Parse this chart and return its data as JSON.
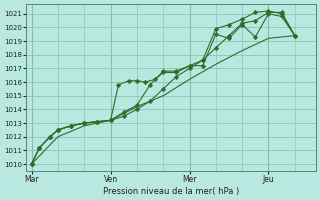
{
  "bg_color": "#b8e8e0",
  "grid_color": "#88bbaa",
  "line_color": "#2d6e2d",
  "xlabel": "Pression niveau de la mer( hPa )",
  "ylim": [
    1009.5,
    1021.7
  ],
  "yticks": [
    1010,
    1011,
    1012,
    1013,
    1014,
    1015,
    1016,
    1017,
    1018,
    1019,
    1020,
    1021
  ],
  "xtick_labels": [
    "Mar",
    "Ven",
    "Mer",
    "Jeu"
  ],
  "xtick_positions": [
    0.0,
    3.0,
    6.0,
    9.0
  ],
  "xlim": [
    -0.2,
    10.8
  ],
  "series": [
    {
      "x": [
        0.0,
        0.3,
        0.7,
        1.0,
        1.5,
        2.0,
        2.5,
        3.0,
        3.3,
        3.7,
        4.0,
        4.3,
        4.7,
        5.0,
        5.5,
        6.0,
        6.5,
        7.0,
        7.5,
        8.0,
        8.5,
        9.0,
        9.5,
        10.0
      ],
      "y": [
        1010.0,
        1011.2,
        1012.0,
        1012.5,
        1012.8,
        1013.0,
        1013.1,
        1013.2,
        1015.8,
        1016.1,
        1016.1,
        1016.0,
        1016.2,
        1016.7,
        1016.7,
        1017.2,
        1017.2,
        1019.5,
        1019.2,
        1020.2,
        1019.3,
        1021.0,
        1020.8,
        1019.4
      ],
      "marker": "D",
      "markersize": 2.2
    },
    {
      "x": [
        0.0,
        1.0,
        2.0,
        3.0,
        4.0,
        5.0,
        6.0,
        7.0,
        8.0,
        9.0,
        10.0
      ],
      "y": [
        1010.0,
        1012.0,
        1012.8,
        1013.2,
        1014.2,
        1015.0,
        1016.2,
        1017.3,
        1018.3,
        1019.2,
        1019.4
      ],
      "marker": null,
      "markersize": 0
    },
    {
      "x": [
        0.0,
        0.3,
        0.7,
        1.0,
        1.5,
        2.0,
        2.5,
        3.0,
        3.5,
        4.0,
        4.5,
        5.0,
        5.5,
        6.0,
        6.5,
        7.0,
        7.5,
        8.0,
        8.5,
        9.0,
        9.5,
        10.0
      ],
      "y": [
        1010.0,
        1011.2,
        1012.0,
        1012.5,
        1012.8,
        1013.0,
        1013.1,
        1013.2,
        1013.5,
        1014.0,
        1014.6,
        1015.5,
        1016.4,
        1017.0,
        1017.6,
        1018.5,
        1019.4,
        1020.3,
        1020.5,
        1021.1,
        1021.1,
        1019.4
      ],
      "marker": "D",
      "markersize": 2.2
    },
    {
      "x": [
        0.0,
        0.3,
        0.7,
        1.0,
        1.5,
        2.0,
        2.5,
        3.0,
        3.5,
        4.0,
        4.5,
        5.0,
        5.5,
        6.0,
        6.5,
        7.0,
        7.5,
        8.0,
        8.5,
        9.0,
        9.5,
        10.0
      ],
      "y": [
        1010.0,
        1011.2,
        1012.0,
        1012.5,
        1012.8,
        1013.0,
        1013.1,
        1013.2,
        1013.8,
        1014.3,
        1015.8,
        1016.8,
        1016.8,
        1017.2,
        1017.6,
        1019.9,
        1020.2,
        1020.6,
        1021.1,
        1021.2,
        1021.0,
        1019.4
      ],
      "marker": "D",
      "markersize": 2.2
    }
  ]
}
